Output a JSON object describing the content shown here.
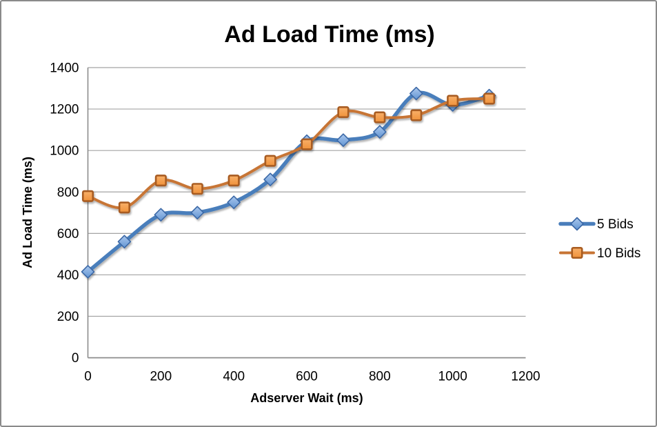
{
  "chart_data": {
    "type": "line",
    "title": "Ad Load Time (ms)",
    "xlabel": "Adserver Wait (ms)",
    "ylabel": "Ad Load Time (ms)",
    "x": [
      0,
      100,
      200,
      300,
      400,
      500,
      600,
      700,
      800,
      900,
      1000,
      1100
    ],
    "series": [
      {
        "name": "5 Bids",
        "values": [
          415,
          560,
          690,
          700,
          750,
          860,
          1045,
          1050,
          1090,
          1275,
          1220,
          1265
        ],
        "line_color": "#4a7ebb",
        "line_width": 5.5,
        "marker": "diamond",
        "marker_fill_top": "#abc8ee",
        "marker_fill_bottom": "#6295d2",
        "marker_stroke": "#3a67a6"
      },
      {
        "name": "10 Bids",
        "values": [
          780,
          725,
          855,
          815,
          855,
          950,
          1030,
          1185,
          1160,
          1170,
          1240,
          1250
        ],
        "line_color": "#c77434",
        "line_width": 4,
        "marker": "square",
        "marker_fill_top": "#f8b06a",
        "marker_fill_bottom": "#f0923a",
        "marker_stroke": "#a85c20"
      }
    ],
    "xlim": [
      0,
      1200
    ],
    "ylim": [
      0,
      1400
    ],
    "x_ticks": [
      0,
      200,
      400,
      600,
      800,
      1000,
      1200
    ],
    "y_ticks": [
      0,
      200,
      400,
      600,
      800,
      1000,
      1200,
      1400
    ],
    "grid": "horizontal",
    "smoothed": true,
    "legend_position": "right"
  },
  "colors": {
    "background": "#ffffff",
    "gridline": "#a3a3a3",
    "axis": "#8c8c8c",
    "text": "#000000",
    "frame_border": "#8a8a8a"
  }
}
